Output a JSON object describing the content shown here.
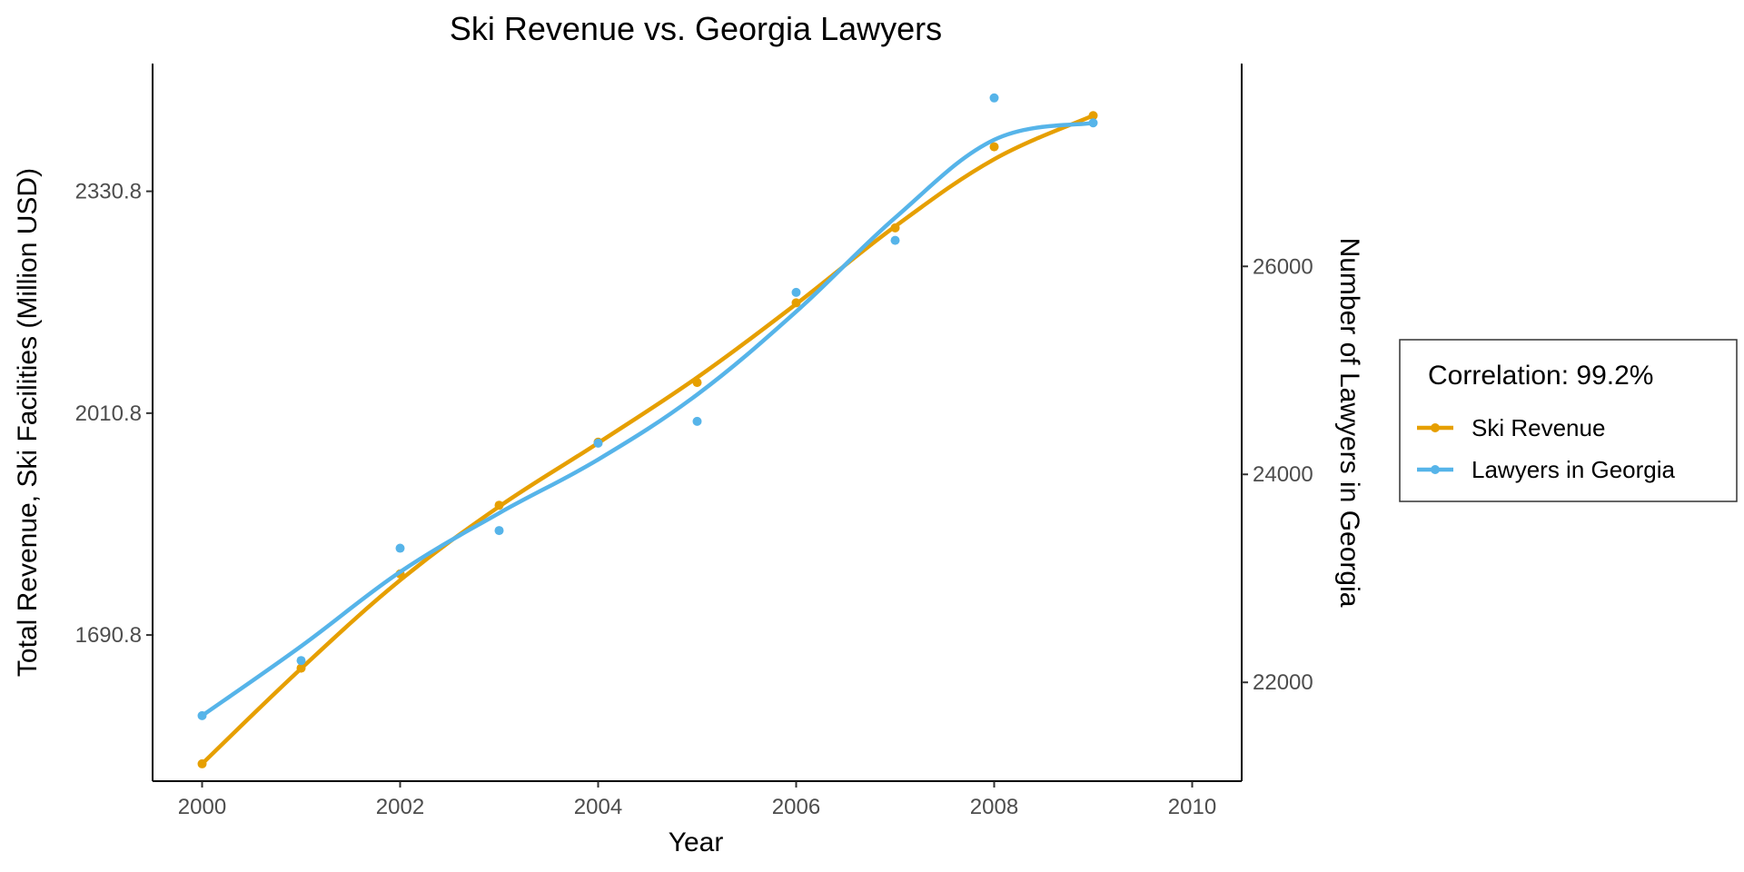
{
  "chart_data": {
    "type": "line",
    "title": "Ski Revenue vs. Georgia Lawyers",
    "xlabel": "Year",
    "ylabel_left": "Total Revenue, Ski Facilities (Million USD)",
    "ylabel_right": "Number of Lawyers in Georgia",
    "x": [
      2000,
      2001,
      2002,
      2003,
      2004,
      2005,
      2006,
      2007,
      2008,
      2009
    ],
    "x_ticks": [
      "2000",
      "2002",
      "2004",
      "2006",
      "2008",
      "2010"
    ],
    "xlim": [
      1999.5,
      2010.5
    ],
    "y_left_ticks": [
      "1690.8",
      "2010.8",
      "2330.8"
    ],
    "y_left_lim": [
      1480,
      2515
    ],
    "y_right_ticks": [
      "22000",
      "24000",
      "26000"
    ],
    "y_right_lim": [
      21050,
      27950
    ],
    "grid": false,
    "legend_position": "right",
    "legend_title": "Correlation: 99.2%",
    "series": [
      {
        "name": "Ski Revenue",
        "axis": "left",
        "color": "#E69F00",
        "values": [
          1505,
          1643,
          1779,
          1878,
          1969,
          2055,
          2170,
          2278,
          2395,
          2440
        ]
      },
      {
        "name": "Lawyers in Georgia",
        "axis": "right",
        "color": "#56B4E9",
        "values": [
          21680,
          22210,
          23290,
          23460,
          24300,
          24510,
          25750,
          26250,
          27620,
          27380
        ]
      }
    ]
  }
}
